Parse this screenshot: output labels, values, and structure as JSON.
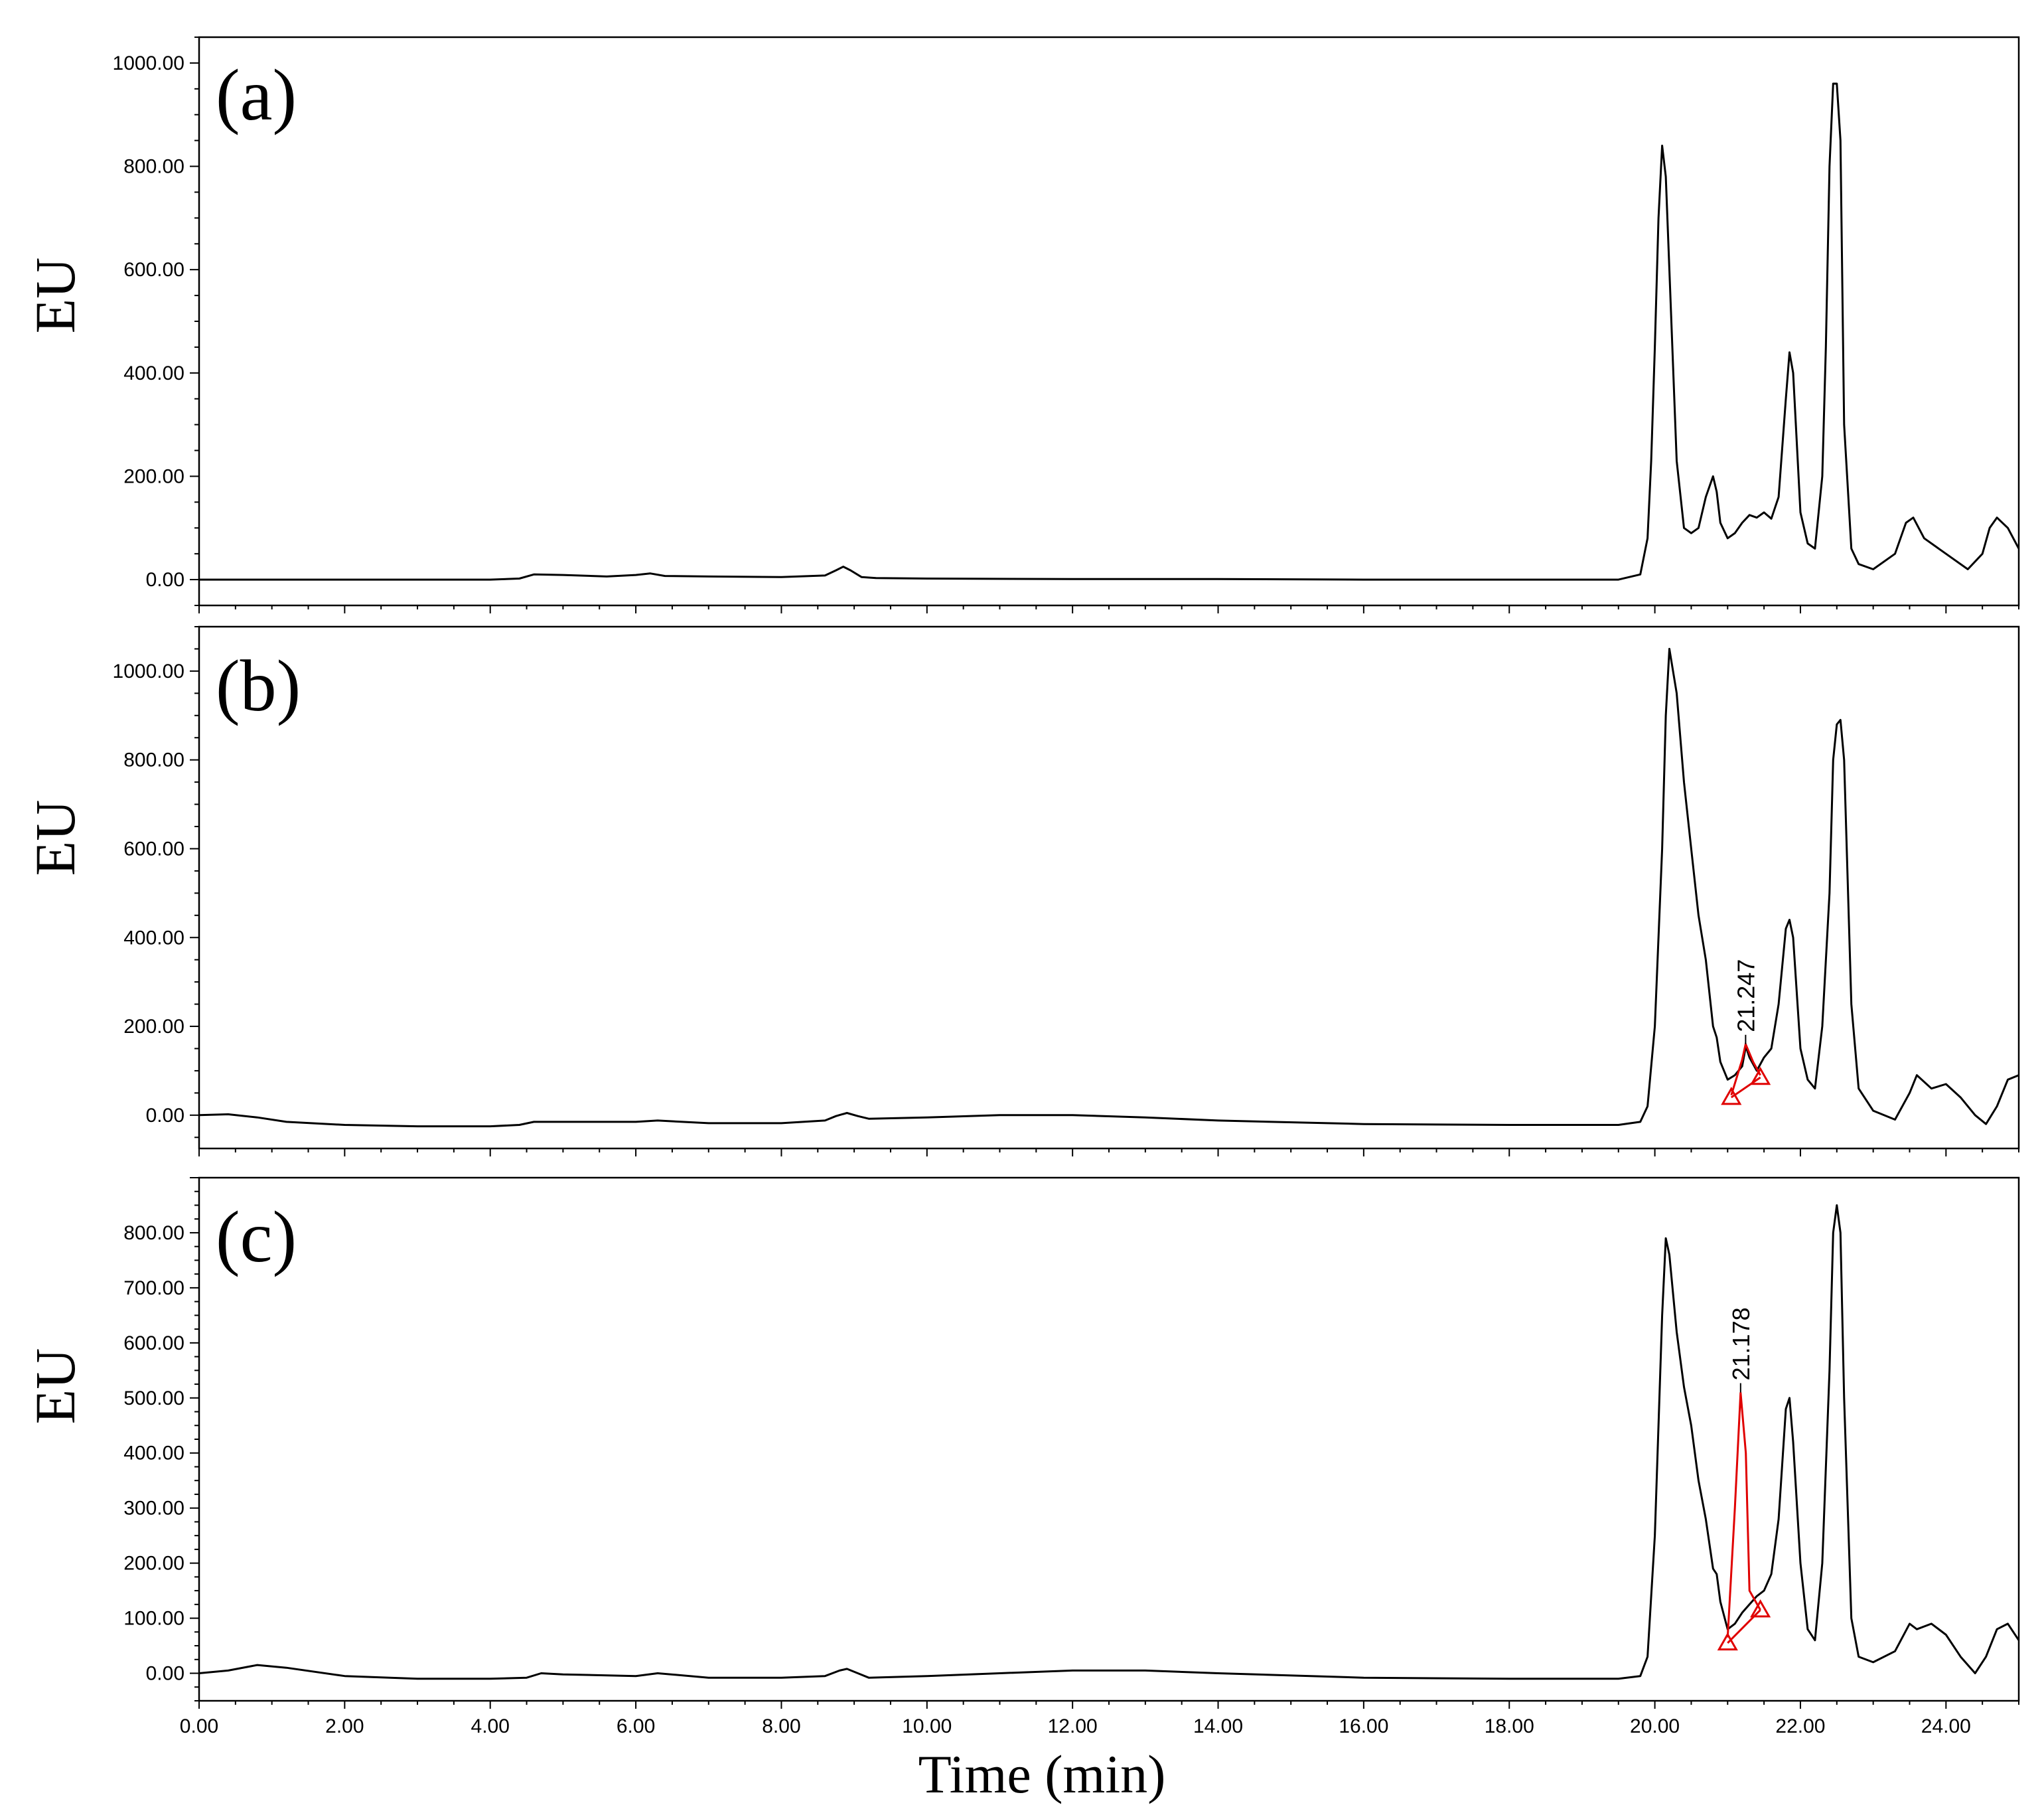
{
  "chart_data": [
    {
      "type": "line",
      "panel_label": "(a)",
      "ylabel": "EU",
      "xlim": [
        0,
        25
      ],
      "ylim": [
        -50,
        1050
      ],
      "yticks": [
        "0.00",
        "200.00",
        "400.00",
        "600.00",
        "800.00",
        "1000.00"
      ],
      "ytick_values": [
        0,
        200,
        400,
        600,
        800,
        1000
      ],
      "series": [
        {
          "x": [
            0,
            1,
            2,
            3,
            4,
            4.4,
            4.6,
            5,
            5.6,
            6,
            6.2,
            6.4,
            7,
            8,
            8.6,
            8.75,
            8.85,
            8.95,
            9.1,
            9.3,
            10,
            12,
            14,
            16,
            18,
            19.5,
            19.8,
            19.9,
            19.95,
            20.0,
            20.05,
            20.1,
            20.15,
            20.2,
            20.3,
            20.4,
            20.5,
            20.6,
            20.7,
            20.8,
            20.85,
            20.9,
            21.0,
            21.1,
            21.2,
            21.3,
            21.4,
            21.5,
            21.6,
            21.7,
            21.8,
            21.85,
            21.9,
            22.0,
            22.1,
            22.2,
            22.3,
            22.35,
            22.4,
            22.45,
            22.5,
            22.55,
            22.6,
            22.7,
            22.8,
            23.0,
            23.3,
            23.45,
            23.55,
            23.7,
            24.0,
            24.3,
            24.5,
            24.6,
            24.7,
            24.85,
            25.0
          ],
          "y": [
            0,
            0,
            0,
            0,
            0,
            2,
            10,
            9,
            6,
            9,
            12,
            7,
            6,
            5,
            8,
            18,
            25,
            18,
            5,
            3,
            2,
            1,
            1,
            0,
            0,
            0,
            10,
            80,
            230,
            450,
            700,
            840,
            780,
            600,
            230,
            100,
            90,
            100,
            160,
            200,
            170,
            110,
            80,
            90,
            110,
            125,
            120,
            130,
            118,
            160,
            350,
            440,
            400,
            130,
            70,
            60,
            200,
            450,
            800,
            960,
            960,
            850,
            300,
            60,
            30,
            20,
            50,
            110,
            120,
            80,
            50,
            20,
            50,
            100,
            120,
            100,
            60
          ]
        }
      ]
    },
    {
      "type": "line",
      "panel_label": "(b)",
      "ylabel": "EU",
      "xlim": [
        0,
        25
      ],
      "ylim": [
        -75,
        1100
      ],
      "yticks": [
        "0.00",
        "200.00",
        "400.00",
        "600.00",
        "800.00",
        "1000.00"
      ],
      "ytick_values": [
        0,
        200,
        400,
        600,
        800,
        1000
      ],
      "series": [
        {
          "x": [
            0,
            0.4,
            0.8,
            1.2,
            2,
            3,
            4,
            4.4,
            4.6,
            5,
            6,
            6.3,
            7,
            8,
            8.6,
            8.75,
            8.9,
            9.05,
            9.2,
            10,
            11,
            12,
            13,
            14,
            16,
            18,
            19.5,
            19.8,
            19.9,
            20.0,
            20.1,
            20.15,
            20.2,
            20.3,
            20.4,
            20.5,
            20.6,
            20.7,
            20.8,
            20.85,
            20.9,
            21.0,
            21.1,
            21.2,
            21.25,
            21.3,
            21.4,
            21.5,
            21.6,
            21.7,
            21.8,
            21.85,
            21.9,
            22.0,
            22.1,
            22.2,
            22.3,
            22.4,
            22.45,
            22.5,
            22.55,
            22.6,
            22.7,
            22.8,
            23.0,
            23.3,
            23.5,
            23.6,
            23.8,
            24.0,
            24.2,
            24.4,
            24.55,
            24.7,
            24.85,
            25.0
          ],
          "y": [
            0,
            2,
            -5,
            -15,
            -22,
            -25,
            -25,
            -22,
            -15,
            -15,
            -15,
            -12,
            -18,
            -18,
            -12,
            -2,
            5,
            -2,
            -8,
            -5,
            0,
            0,
            -5,
            -12,
            -20,
            -22,
            -22,
            -15,
            20,
            200,
            600,
            900,
            1050,
            950,
            750,
            600,
            450,
            350,
            200,
            175,
            120,
            80,
            90,
            110,
            155,
            130,
            100,
            130,
            150,
            250,
            420,
            440,
            400,
            150,
            80,
            60,
            200,
            500,
            800,
            880,
            890,
            800,
            250,
            60,
            10,
            -10,
            50,
            90,
            60,
            70,
            40,
            0,
            -20,
            20,
            80,
            90
          ]
        },
        {
          "name": "21.247",
          "x": [
            21.05,
            21.2,
            21.247,
            21.35,
            21.45
          ],
          "y": [
            45,
            125,
            160,
            120,
            90
          ],
          "marker_x": [
            21.05,
            21.45
          ],
          "marker_y": [
            40,
            85
          ]
        }
      ]
    },
    {
      "type": "line",
      "panel_label": "(c)",
      "ylabel": "EU",
      "xlabel": "Time (min)",
      "xlim": [
        0,
        25
      ],
      "ylim": [
        -50,
        900
      ],
      "xticks": [
        "0.00",
        "2.00",
        "4.00",
        "6.00",
        "8.00",
        "10.00",
        "12.00",
        "14.00",
        "16.00",
        "18.00",
        "20.00",
        "22.00",
        "24.00"
      ],
      "xtick_values": [
        0,
        2,
        4,
        6,
        8,
        10,
        12,
        14,
        16,
        18,
        20,
        22,
        24
      ],
      "yticks": [
        "0.00",
        "100.00",
        "200.00",
        "300.00",
        "400.00",
        "500.00",
        "600.00",
        "700.00",
        "800.00"
      ],
      "ytick_values": [
        0,
        100,
        200,
        300,
        400,
        500,
        600,
        700,
        800
      ],
      "series": [
        {
          "x": [
            0,
            0.4,
            0.8,
            1.2,
            2,
            3,
            4,
            4.5,
            4.7,
            5,
            6,
            6.3,
            7,
            8,
            8.6,
            8.8,
            8.9,
            9.05,
            9.2,
            10,
            11,
            12,
            13,
            14,
            16,
            18,
            19.5,
            19.8,
            19.9,
            20.0,
            20.1,
            20.15,
            20.2,
            20.3,
            20.4,
            20.5,
            20.6,
            20.7,
            20.8,
            20.85,
            20.9,
            21.0,
            21.1,
            21.2,
            21.3,
            21.4,
            21.5,
            21.6,
            21.7,
            21.8,
            21.85,
            21.9,
            22.0,
            22.1,
            22.2,
            22.3,
            22.4,
            22.45,
            22.5,
            22.55,
            22.6,
            22.7,
            22.8,
            23.0,
            23.3,
            23.5,
            23.6,
            23.8,
            24.0,
            24.2,
            24.4,
            24.55,
            24.7,
            24.85,
            25.0
          ],
          "y": [
            0,
            5,
            15,
            10,
            -5,
            -10,
            -10,
            -8,
            0,
            -2,
            -5,
            0,
            -8,
            -8,
            -5,
            5,
            8,
            0,
            -8,
            -5,
            0,
            5,
            5,
            0,
            -8,
            -10,
            -10,
            -5,
            30,
            250,
            650,
            790,
            760,
            620,
            520,
            450,
            350,
            280,
            190,
            180,
            130,
            80,
            90,
            110,
            125,
            140,
            150,
            180,
            280,
            480,
            500,
            420,
            200,
            80,
            60,
            200,
            550,
            800,
            850,
            800,
            500,
            100,
            30,
            20,
            40,
            90,
            80,
            90,
            70,
            30,
            0,
            30,
            80,
            90,
            60
          ]
        },
        {
          "name": "21.178",
          "x": [
            21.0,
            21.1,
            21.178,
            21.25,
            21.3,
            21.45
          ],
          "y": [
            65,
            300,
            510,
            400,
            150,
            115
          ],
          "marker_x": [
            21.0,
            21.45
          ],
          "marker_y": [
            55,
            115
          ]
        }
      ]
    }
  ]
}
